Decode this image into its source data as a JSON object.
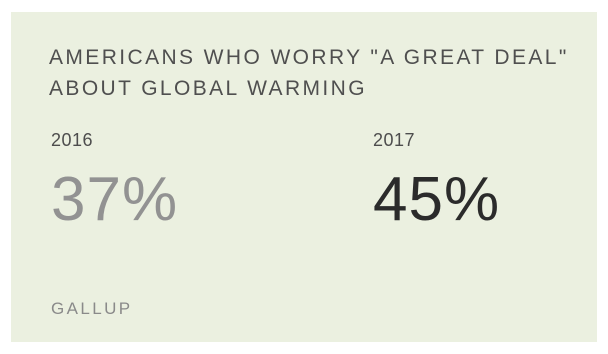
{
  "headline": "AMERICANS WHO WORRY \"A GREAT DEAL\" ABOUT GLOBAL WARMING",
  "stats": [
    {
      "year": "2016",
      "value": "37%",
      "color": "#929292"
    },
    {
      "year": "2017",
      "value": "45%",
      "color": "#2b2b2b"
    }
  ],
  "source": "GALLUP",
  "colors": {
    "card_background": "#ebf0e0",
    "headline": "#4f4f4f"
  }
}
